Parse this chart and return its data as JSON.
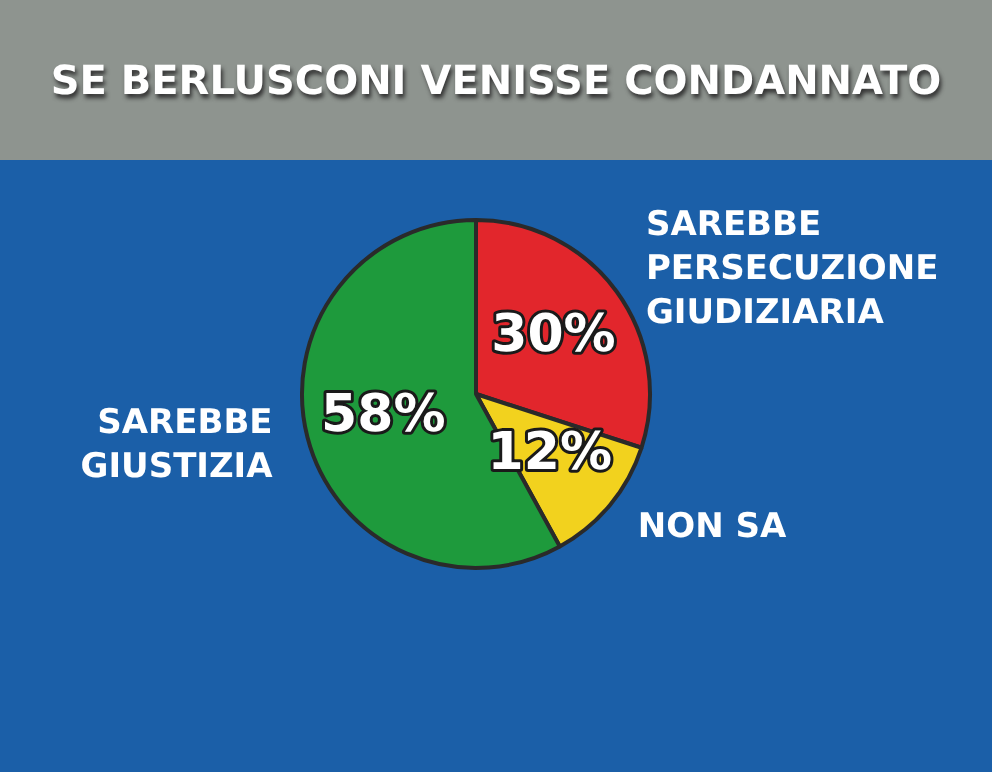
{
  "chart_data": {
    "type": "pie",
    "title": "SE BERLUSCONI VENISSE CONDANNATO",
    "categories": [
      "SAREBBE PERSECUZIONE GIUDIZIARIA",
      "NON SA",
      "SAREBBE GIUSTIZIA"
    ],
    "values": [
      30,
      12,
      58
    ],
    "colors": [
      "#e2262c",
      "#f2d21e",
      "#1e9a3c"
    ],
    "value_labels": [
      "30%",
      "12%",
      "58%"
    ],
    "legend": false
  }
}
